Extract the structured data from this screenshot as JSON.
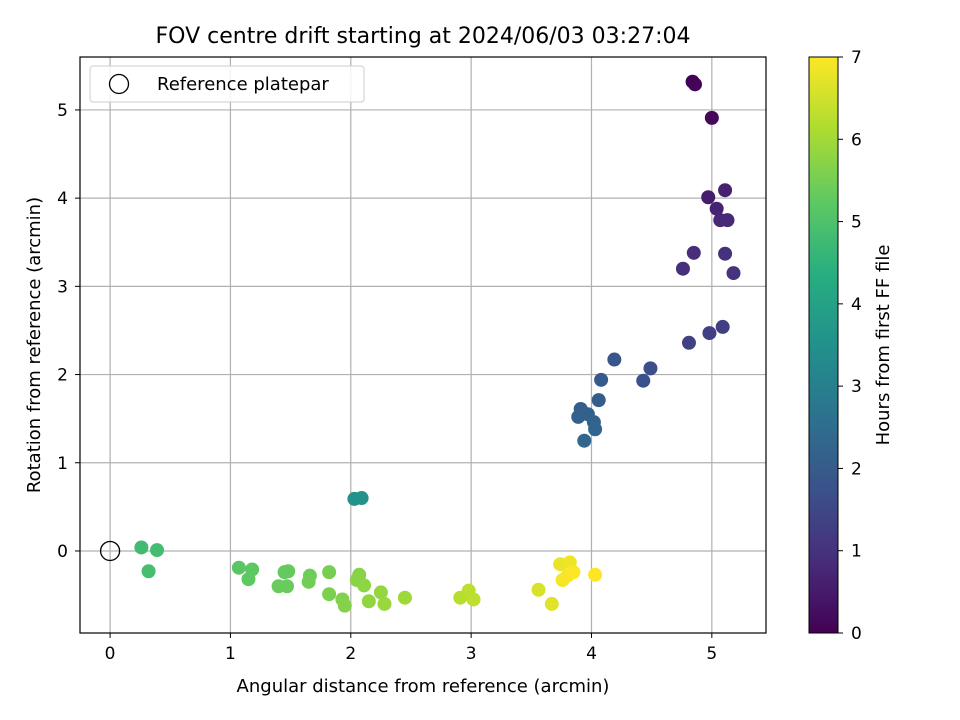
{
  "chart_data": {
    "type": "scatter",
    "title": "FOV centre drift starting at 2024/06/03 03:27:04",
    "xlabel": "Angular distance from reference (arcmin)",
    "ylabel": "Rotation from reference (arcmin)",
    "xlim": [
      -0.25,
      5.45
    ],
    "ylim": [
      -0.93,
      5.6
    ],
    "xticks": [
      0,
      1,
      2,
      3,
      4,
      5
    ],
    "yticks": [
      0,
      1,
      2,
      3,
      4,
      5
    ],
    "grid": true,
    "legend": {
      "placement": "top-left",
      "entries": [
        "Reference platepar"
      ]
    },
    "reference_point": {
      "name": "Reference platepar",
      "x": 0,
      "y": 0
    },
    "colorbar": {
      "label": "Hours from first FF file",
      "range": [
        0,
        7
      ],
      "ticks": [
        0,
        1,
        2,
        3,
        4,
        5,
        6,
        7
      ],
      "colormap": "viridis"
    },
    "points": [
      {
        "x": 4.84,
        "y": 5.32,
        "c": 0.0
      },
      {
        "x": 4.86,
        "y": 5.29,
        "c": 0.05
      },
      {
        "x": 5.0,
        "y": 4.91,
        "c": 0.15
      },
      {
        "x": 4.97,
        "y": 4.01,
        "c": 0.55
      },
      {
        "x": 5.11,
        "y": 4.09,
        "c": 0.65
      },
      {
        "x": 5.04,
        "y": 3.88,
        "c": 0.7
      },
      {
        "x": 5.07,
        "y": 3.75,
        "c": 0.78
      },
      {
        "x": 5.13,
        "y": 3.75,
        "c": 0.82
      },
      {
        "x": 4.85,
        "y": 3.38,
        "c": 0.9
      },
      {
        "x": 4.76,
        "y": 3.2,
        "c": 0.95
      },
      {
        "x": 5.11,
        "y": 3.37,
        "c": 1.0
      },
      {
        "x": 5.18,
        "y": 3.15,
        "c": 1.05
      },
      {
        "x": 5.09,
        "y": 2.54,
        "c": 1.3
      },
      {
        "x": 4.98,
        "y": 2.47,
        "c": 1.35
      },
      {
        "x": 4.81,
        "y": 2.36,
        "c": 1.4
      },
      {
        "x": 4.49,
        "y": 2.07,
        "c": 1.7
      },
      {
        "x": 4.43,
        "y": 1.93,
        "c": 1.75
      },
      {
        "x": 4.19,
        "y": 2.17,
        "c": 1.9
      },
      {
        "x": 4.08,
        "y": 1.94,
        "c": 2.0
      },
      {
        "x": 4.06,
        "y": 1.71,
        "c": 2.05
      },
      {
        "x": 3.91,
        "y": 1.61,
        "c": 2.1
      },
      {
        "x": 3.89,
        "y": 1.52,
        "c": 2.15
      },
      {
        "x": 3.97,
        "y": 1.55,
        "c": 2.2
      },
      {
        "x": 4.02,
        "y": 1.46,
        "c": 2.25
      },
      {
        "x": 4.03,
        "y": 1.38,
        "c": 2.3
      },
      {
        "x": 3.94,
        "y": 1.25,
        "c": 2.35
      },
      {
        "x": 2.03,
        "y": 0.59,
        "c": 3.55
      },
      {
        "x": 2.09,
        "y": 0.6,
        "c": 3.6
      },
      {
        "x": 0.26,
        "y": 0.04,
        "c": 4.8
      },
      {
        "x": 0.39,
        "y": 0.01,
        "c": 4.85
      },
      {
        "x": 0.32,
        "y": -0.23,
        "c": 4.9
      },
      {
        "x": 1.07,
        "y": -0.19,
        "c": 5.2
      },
      {
        "x": 1.18,
        "y": -0.21,
        "c": 5.25
      },
      {
        "x": 1.15,
        "y": -0.32,
        "c": 5.28
      },
      {
        "x": 1.45,
        "y": -0.24,
        "c": 5.32
      },
      {
        "x": 1.48,
        "y": -0.23,
        "c": 5.35
      },
      {
        "x": 1.4,
        "y": -0.4,
        "c": 5.38
      },
      {
        "x": 1.47,
        "y": -0.4,
        "c": 5.4
      },
      {
        "x": 1.66,
        "y": -0.28,
        "c": 5.45
      },
      {
        "x": 1.65,
        "y": -0.35,
        "c": 5.48
      },
      {
        "x": 1.82,
        "y": -0.24,
        "c": 5.55
      },
      {
        "x": 1.82,
        "y": -0.49,
        "c": 5.6
      },
      {
        "x": 1.93,
        "y": -0.55,
        "c": 5.65
      },
      {
        "x": 1.95,
        "y": -0.62,
        "c": 5.7
      },
      {
        "x": 2.07,
        "y": -0.27,
        "c": 5.72
      },
      {
        "x": 2.05,
        "y": -0.33,
        "c": 5.75
      },
      {
        "x": 2.11,
        "y": -0.39,
        "c": 5.8
      },
      {
        "x": 2.15,
        "y": -0.57,
        "c": 5.85
      },
      {
        "x": 2.25,
        "y": -0.47,
        "c": 5.88
      },
      {
        "x": 2.28,
        "y": -0.6,
        "c": 5.92
      },
      {
        "x": 2.45,
        "y": -0.53,
        "c": 6.0
      },
      {
        "x": 2.91,
        "y": -0.53,
        "c": 6.25
      },
      {
        "x": 2.98,
        "y": -0.45,
        "c": 6.3
      },
      {
        "x": 3.02,
        "y": -0.55,
        "c": 6.35
      },
      {
        "x": 3.56,
        "y": -0.44,
        "c": 6.6
      },
      {
        "x": 3.67,
        "y": -0.6,
        "c": 6.7
      },
      {
        "x": 3.74,
        "y": -0.15,
        "c": 6.8
      },
      {
        "x": 3.82,
        "y": -0.13,
        "c": 6.85
      },
      {
        "x": 3.76,
        "y": -0.33,
        "c": 6.9
      },
      {
        "x": 3.8,
        "y": -0.28,
        "c": 6.95
      },
      {
        "x": 3.85,
        "y": -0.24,
        "c": 6.98
      },
      {
        "x": 4.03,
        "y": -0.27,
        "c": 7.0
      }
    ]
  }
}
